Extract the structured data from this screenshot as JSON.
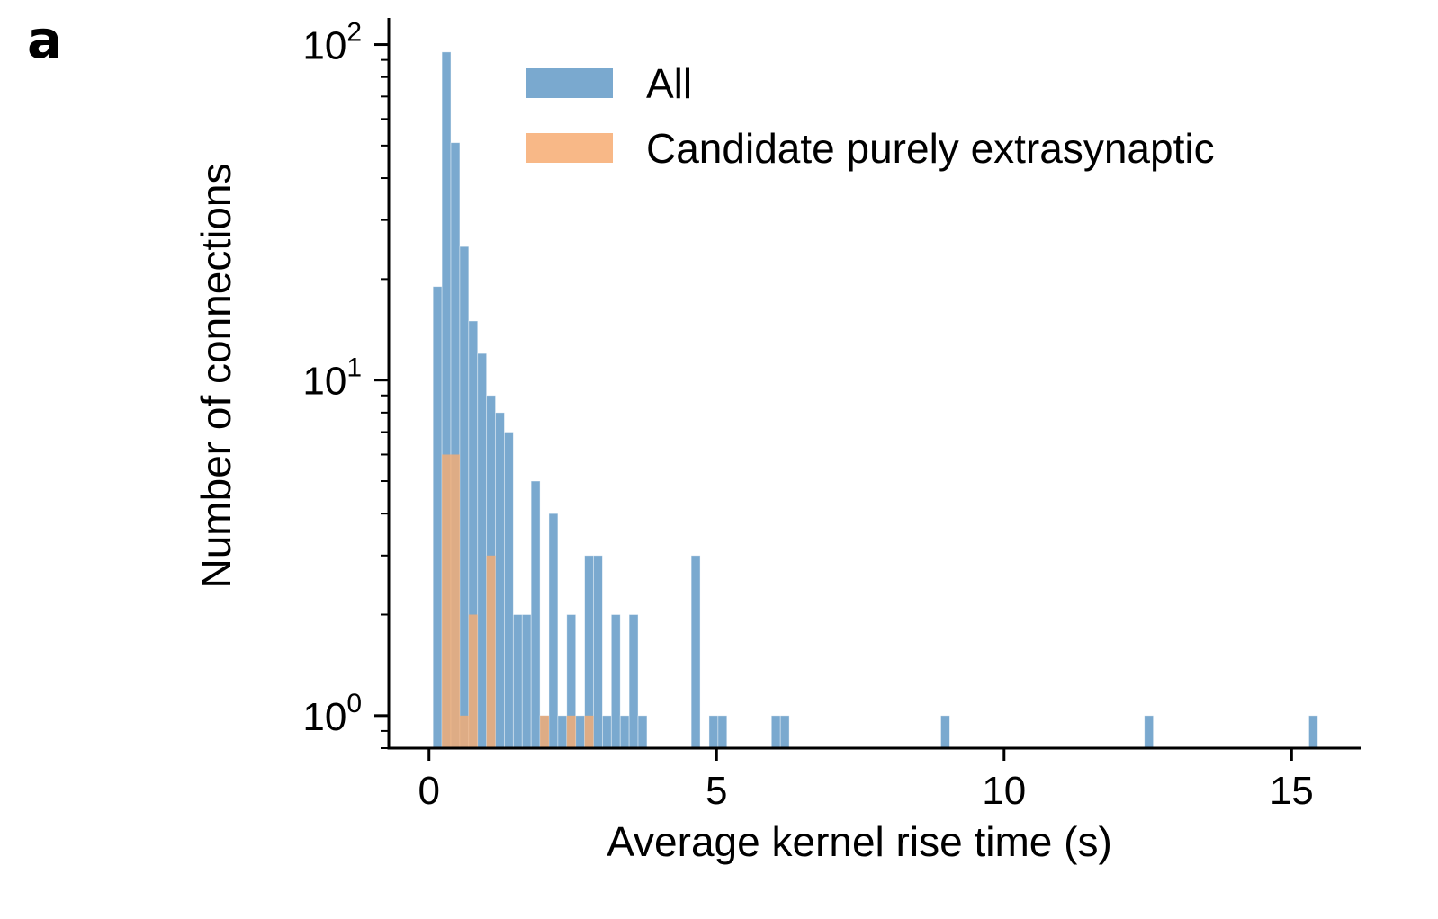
{
  "panel_label": "a",
  "chart_data": {
    "type": "bar",
    "subtype": "histogram",
    "xlabel": "Average kernel rise time (s)",
    "ylabel": "Number of connections",
    "yscale": "log",
    "xlim": [
      -0.7,
      16.2
    ],
    "ylim": [
      0.8,
      120
    ],
    "xticks": [
      0,
      5,
      10,
      15
    ],
    "xtick_labels": [
      "0",
      "5",
      "10",
      "15"
    ],
    "yticks": [
      1,
      10,
      100
    ],
    "ytick_labels": [
      {
        "base": "10",
        "exp": "0"
      },
      {
        "base": "10",
        "exp": "1"
      },
      {
        "base": "10",
        "exp": "2"
      }
    ],
    "bin_width": 0.155,
    "grid": false,
    "legend_position": "top-right",
    "colors": {
      "all": "#7aa9cf",
      "candidate": "#f7ac72"
    },
    "series": [
      {
        "name": "All",
        "bins": [
          {
            "x": 0.07,
            "count": 19
          },
          {
            "x": 0.225,
            "count": 95
          },
          {
            "x": 0.38,
            "count": 51
          },
          {
            "x": 0.535,
            "count": 25
          },
          {
            "x": 0.69,
            "count": 15
          },
          {
            "x": 0.845,
            "count": 12
          },
          {
            "x": 1.0,
            "count": 9
          },
          {
            "x": 1.155,
            "count": 8
          },
          {
            "x": 1.31,
            "count": 7
          },
          {
            "x": 1.465,
            "count": 2
          },
          {
            "x": 1.62,
            "count": 2
          },
          {
            "x": 1.775,
            "count": 5
          },
          {
            "x": 1.93,
            "count": 1
          },
          {
            "x": 2.085,
            "count": 4
          },
          {
            "x": 2.24,
            "count": 1
          },
          {
            "x": 2.395,
            "count": 2
          },
          {
            "x": 2.55,
            "count": 1
          },
          {
            "x": 2.705,
            "count": 3
          },
          {
            "x": 2.86,
            "count": 3
          },
          {
            "x": 3.015,
            "count": 1
          },
          {
            "x": 3.17,
            "count": 2
          },
          {
            "x": 3.325,
            "count": 1
          },
          {
            "x": 3.48,
            "count": 2
          },
          {
            "x": 3.635,
            "count": 1
          },
          {
            "x": 4.56,
            "count": 3
          },
          {
            "x": 4.87,
            "count": 1
          },
          {
            "x": 5.025,
            "count": 1
          },
          {
            "x": 5.955,
            "count": 1
          },
          {
            "x": 6.11,
            "count": 1
          },
          {
            "x": 8.9,
            "count": 1
          },
          {
            "x": 12.44,
            "count": 1
          },
          {
            "x": 15.3,
            "count": 1
          }
        ]
      },
      {
        "name": "Candidate purely extrasynaptic",
        "bins": [
          {
            "x": 0.225,
            "count": 6
          },
          {
            "x": 0.38,
            "count": 6
          },
          {
            "x": 0.535,
            "count": 1
          },
          {
            "x": 0.69,
            "count": 2
          },
          {
            "x": 1.0,
            "count": 3
          },
          {
            "x": 1.93,
            "count": 1
          },
          {
            "x": 2.395,
            "count": 1
          },
          {
            "x": 2.705,
            "count": 1
          }
        ]
      }
    ]
  }
}
